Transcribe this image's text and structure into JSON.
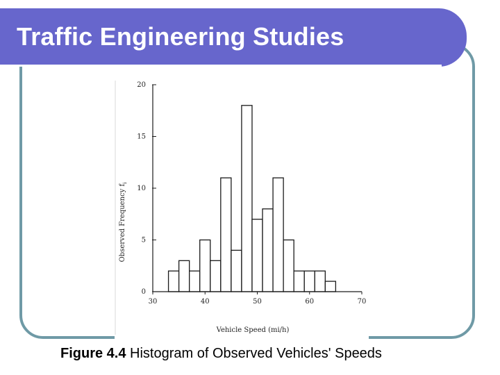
{
  "slide": {
    "title": "Traffic Engineering Studies",
    "caption_label": "Figure 4.4",
    "caption_text": " Histogram of Observed Vehicles' Speeds"
  },
  "colors": {
    "title_band": "#6766cc",
    "frame_border": "#6f9aa6"
  },
  "chart_data": {
    "type": "bar",
    "title": "",
    "xlabel": "Vehicle Speed (mi/h)",
    "ylabel": "Observed Frequency  f",
    "ylabel_subscript": "i",
    "xlim": [
      30,
      70
    ],
    "ylim": [
      0,
      20
    ],
    "xticks": [
      30,
      40,
      50,
      60,
      70
    ],
    "yticks": [
      0,
      5,
      10,
      15,
      20
    ],
    "bin_width": 2,
    "bins": [
      {
        "start": 33,
        "value": 2
      },
      {
        "start": 35,
        "value": 3
      },
      {
        "start": 37,
        "value": 2
      },
      {
        "start": 39,
        "value": 5
      },
      {
        "start": 41,
        "value": 3
      },
      {
        "start": 43,
        "value": 11
      },
      {
        "start": 45,
        "value": 4
      },
      {
        "start": 47,
        "value": 18
      },
      {
        "start": 49,
        "value": 7
      },
      {
        "start": 51,
        "value": 8
      },
      {
        "start": 53,
        "value": 11
      },
      {
        "start": 55,
        "value": 5
      },
      {
        "start": 57,
        "value": 2
      },
      {
        "start": 59,
        "value": 2
      },
      {
        "start": 61,
        "value": 2
      },
      {
        "start": 63,
        "value": 1
      }
    ]
  }
}
